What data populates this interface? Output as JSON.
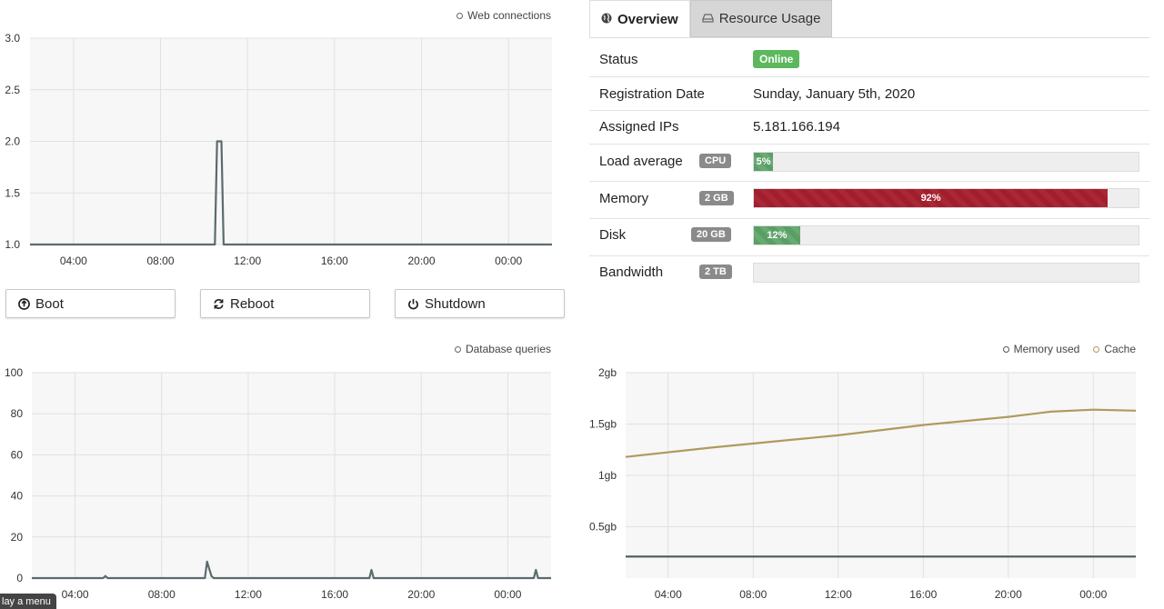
{
  "charts": {
    "web": {
      "legend": "Web connections",
      "x_ticks": [
        "04:00",
        "08:00",
        "12:00",
        "16:00",
        "20:00",
        "00:00"
      ],
      "y_ticks": [
        "3.0",
        "2.5",
        "2.0",
        "1.5",
        "1.0"
      ]
    },
    "db": {
      "legend": "Database queries",
      "x_ticks": [
        "04:00",
        "08:00",
        "12:00",
        "16:00",
        "20:00",
        "00:00"
      ],
      "y_ticks": [
        "100",
        "80",
        "60",
        "40",
        "20",
        "0"
      ]
    },
    "memory": {
      "legend_used": "Memory used",
      "legend_cache": "Cache",
      "x_ticks": [
        "04:00",
        "08:00",
        "12:00",
        "16:00",
        "20:00",
        "00:00"
      ],
      "y_ticks": [
        "2gb",
        "1.5gb",
        "1gb",
        "0.5gb"
      ]
    }
  },
  "chart_data": [
    {
      "type": "line",
      "title": "",
      "series": [
        {
          "name": "Web connections",
          "x": [
            2.0,
            10.5,
            10.6,
            10.8,
            10.9,
            26.0
          ],
          "values": [
            1,
            1,
            2,
            2,
            1,
            1
          ]
        }
      ],
      "x_ticks": [
        "04:00",
        "08:00",
        "12:00",
        "16:00",
        "20:00",
        "00:00"
      ],
      "ylim": [
        1.0,
        3.0
      ],
      "xlabel": "",
      "ylabel": "",
      "grid": true,
      "legend": "top-right"
    },
    {
      "type": "line",
      "title": "",
      "series": [
        {
          "name": "Database queries",
          "x": [
            2.0,
            5.3,
            5.4,
            5.5,
            10.0,
            10.1,
            10.3,
            10.4,
            17.6,
            17.7,
            17.8,
            25.2,
            25.3,
            25.4,
            26.0
          ],
          "values": [
            0,
            0,
            1,
            0,
            0,
            8,
            1,
            0,
            0,
            4,
            0,
            0,
            4,
            0,
            0
          ]
        }
      ],
      "x_ticks": [
        "04:00",
        "08:00",
        "12:00",
        "16:00",
        "20:00",
        "00:00"
      ],
      "ylim": [
        0,
        100
      ],
      "xlabel": "",
      "ylabel": "",
      "grid": true,
      "legend": "top-right"
    },
    {
      "type": "line",
      "title": "",
      "series": [
        {
          "name": "Memory used",
          "x": [
            2.0,
            6.0,
            10.0,
            14.0,
            18.0,
            22.0,
            26.0
          ],
          "values": [
            0.21,
            0.21,
            0.21,
            0.21,
            0.21,
            0.21,
            0.21
          ]
        },
        {
          "name": "Cache",
          "x": [
            2.0,
            6.0,
            10.0,
            12.0,
            16.0,
            20.0,
            22.0,
            24.0,
            26.0
          ],
          "values": [
            1.18,
            1.27,
            1.35,
            1.39,
            1.49,
            1.57,
            1.62,
            1.64,
            1.63
          ]
        }
      ],
      "x_ticks": [
        "04:00",
        "08:00",
        "12:00",
        "16:00",
        "20:00",
        "00:00"
      ],
      "y_ticks": [
        "2gb",
        "1.5gb",
        "1gb",
        "0.5gb"
      ],
      "ylim": [
        0,
        2
      ],
      "xlabel": "",
      "ylabel": "",
      "colors": {
        "Memory used": "#4b5a54",
        "Cache": "#b09a5e"
      },
      "grid": true,
      "legend": "top-right"
    }
  ],
  "buttons": {
    "boot": "Boot",
    "reboot": "Reboot",
    "shutdown": "Shutdown"
  },
  "tabs": {
    "overview": "Overview",
    "resource_usage": "Resource Usage"
  },
  "info": {
    "status_label": "Status",
    "status_value": "Online",
    "registration_label": "Registration Date",
    "registration_value": "Sunday, January 5th, 2020",
    "ips_label": "Assigned IPs",
    "ips_value": "5.181.166.194"
  },
  "resources": {
    "load": {
      "label": "Load average",
      "badge": "CPU",
      "percent": 5,
      "text": "5%"
    },
    "memory": {
      "label": "Memory",
      "badge": "2 GB",
      "percent": 92,
      "text": "92%"
    },
    "disk": {
      "label": "Disk",
      "badge": "20 GB",
      "percent": 12,
      "text": "12%"
    },
    "bandwidth": {
      "label": "Bandwidth",
      "badge": "2 TB",
      "percent": 0,
      "text": ""
    }
  },
  "footer": {
    "text": "lay a menu"
  },
  "colors": {
    "online": "#5cb85c",
    "bar_green": "#5a9e66",
    "bar_red": "#a01e2d",
    "chart_line": "#5b6b6e",
    "cache_line": "#b09a5e"
  }
}
